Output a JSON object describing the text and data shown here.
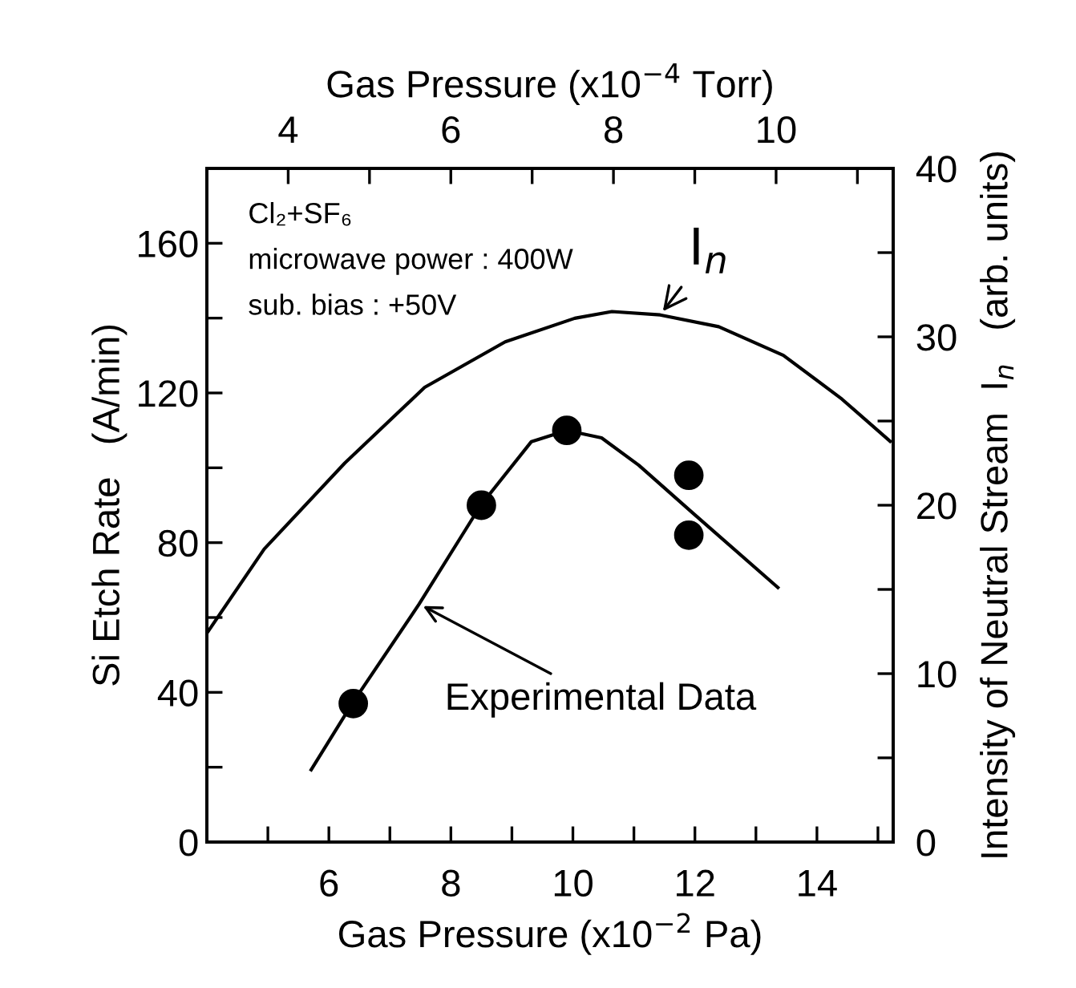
{
  "chart_data": {
    "type": "line",
    "xlabel": "Gas Pressure (x10$^{−2}$ Pa)",
    "x2label": "Gas Pressure (x10$^{−4}$ Torr)",
    "ylabel": "Si Etch Rate   (A/min)",
    "y2label": "Intensity of Neutral Stream  I$_{n}$   (arb. units)",
    "xlim": [
      4,
      15.25
    ],
    "xticks": [
      {
        "value": 5,
        "label": null
      },
      6,
      {
        "value": 7,
        "label": null
      },
      8,
      {
        "value": 9,
        "label": null
      },
      10,
      {
        "value": 11,
        "label": null
      },
      12,
      {
        "value": 13,
        "label": null
      },
      14,
      {
        "value": 15,
        "label": null
      }
    ],
    "x2lim": [
      3,
      11.44
    ],
    "x2ticks": [
      4,
      {
        "value": 5,
        "label": null
      },
      6,
      {
        "value": 7,
        "label": null
      },
      8,
      {
        "value": 9,
        "label": null
      },
      10,
      {
        "value": 11,
        "label": null
      }
    ],
    "ylim": [
      0,
      180
    ],
    "yticks": [
      0,
      {
        "value": 20,
        "label": null
      },
      40,
      {
        "value": 60,
        "label": null
      },
      80,
      {
        "value": 100,
        "label": null
      },
      120,
      {
        "value": 140,
        "label": null
      },
      160
    ],
    "y2lim": [
      0,
      40
    ],
    "y2ticks": [
      0,
      {
        "value": 5,
        "label": null
      },
      10,
      {
        "value": 15,
        "label": null
      },
      20,
      {
        "value": 25,
        "label": null
      },
      30,
      {
        "value": 35,
        "label": null
      },
      40
    ],
    "grid": false,
    "line_style": "solid",
    "annotations": [
      "Cl₂+SF₆",
      "microwave power : 400W",
      "sub. bias : +50V"
    ],
    "series": [
      {
        "name": "Experimental Data",
        "color": "#000000",
        "marker": "none",
        "x": [
          5.71,
          6.39,
          7.48,
          8.49,
          9.32,
          9.9,
          10.47,
          11.08,
          11.96,
          13.36
        ],
        "values": [
          19.3,
          37.2,
          63.6,
          90,
          107,
          110,
          108,
          100.7,
          88,
          68
        ]
      },
      {
        "color": "#000000",
        "type": "scatter",
        "marker": "circle",
        "x": [
          6.4,
          8.5,
          9.9,
          11.9,
          11.9
        ],
        "values": [
          37,
          90,
          110,
          98,
          82
        ]
      },
      {
        "name": "I$_{n}$",
        "color": "#000000",
        "marker": "none",
        "axis": "y2",
        "x": [
          4.0,
          4.94,
          6.26,
          7.57,
          8.89,
          10.03,
          10.64,
          11.43,
          12.39,
          13.45,
          14.41,
          15.2
        ],
        "values": [
          12.4,
          17.4,
          22.5,
          27,
          29.7,
          31.1,
          31.5,
          31.3,
          30.6,
          28.9,
          26.3,
          23.8
        ]
      }
    ]
  }
}
